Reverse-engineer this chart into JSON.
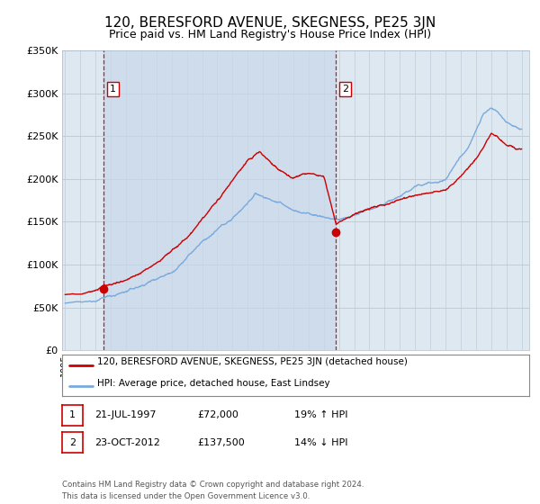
{
  "title": "120, BERESFORD AVENUE, SKEGNESS, PE25 3JN",
  "subtitle": "Price paid vs. HM Land Registry's House Price Index (HPI)",
  "title_fontsize": 11,
  "subtitle_fontsize": 9,
  "line1_color": "#cc0000",
  "line2_color": "#7aaadd",
  "background_color": "#ffffff",
  "plot_bg_color": "#dde8f0",
  "shade_color": "#ccdaeb",
  "grid_color": "#bbccdd",
  "ylim": [
    0,
    350000
  ],
  "ytick_labels": [
    "£0",
    "£50K",
    "£100K",
    "£150K",
    "£200K",
    "£250K",
    "£300K",
    "£350K"
  ],
  "ytick_values": [
    0,
    50000,
    100000,
    150000,
    200000,
    250000,
    300000,
    350000
  ],
  "marker1_x": 1997.55,
  "marker1_y": 72000,
  "marker2_x": 2012.81,
  "marker2_y": 137500,
  "vline1_x": 1997.55,
  "vline2_x": 2012.81,
  "legend_label1": "120, BERESFORD AVENUE, SKEGNESS, PE25 3JN (detached house)",
  "legend_label2": "HPI: Average price, detached house, East Lindsey",
  "table_row1": [
    "1",
    "21-JUL-1997",
    "£72,000",
    "19% ↑ HPI"
  ],
  "table_row2": [
    "2",
    "23-OCT-2012",
    "£137,500",
    "14% ↓ HPI"
  ],
  "footer_text": "Contains HM Land Registry data © Crown copyright and database right 2024.\nThis data is licensed under the Open Government Licence v3.0.",
  "xmin": 1994.8,
  "xmax": 2025.5
}
